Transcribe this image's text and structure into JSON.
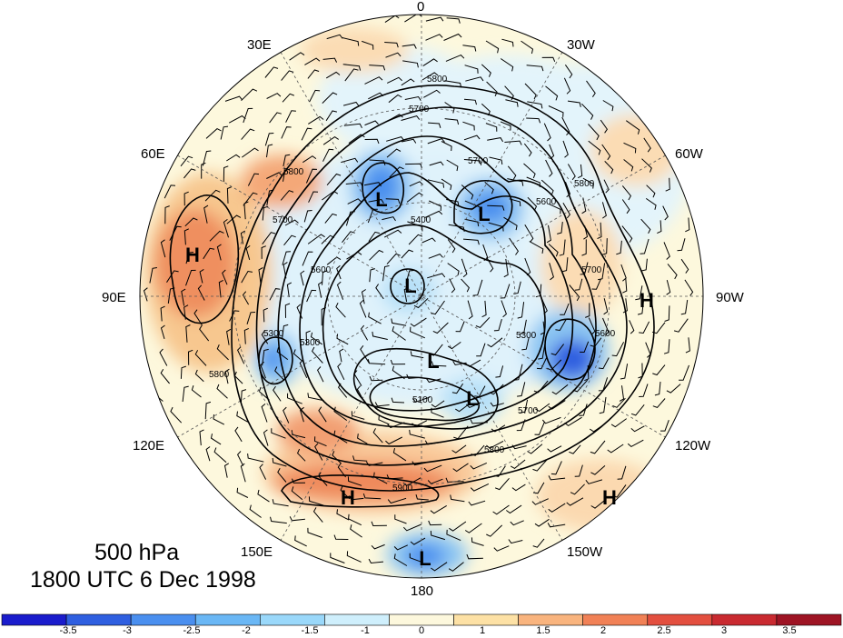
{
  "title": {
    "level": "500 hPa",
    "time": "1800 UTC 6 Dec 1998"
  },
  "longitude_labels": {
    "lon_0": "0",
    "lon_30w": "30W",
    "lon_60w": "60W",
    "lon_90w": "90W",
    "lon_120w": "120W",
    "lon_150w": "150W",
    "lon_180": "180",
    "lon_150e": "150E",
    "lon_120e": "120E",
    "lon_90e": "90E",
    "lon_60e": "60E",
    "lon_30e": "30E"
  },
  "pressure_centers": [
    "H",
    "L",
    "L",
    "L",
    "L",
    "L",
    "L",
    "H",
    "H",
    "H"
  ],
  "contour_labels": [
    "5800",
    "5700",
    "5700",
    "5600",
    "5800",
    "5700",
    "5600",
    "5800",
    "5400",
    "5300",
    "5300",
    "5100",
    "5800",
    "5700",
    "5900",
    "5800",
    "5300",
    "5700",
    "5600"
  ],
  "colorbar": {
    "colors": [
      "#1a1ccc",
      "#2f5fe0",
      "#4a8fef",
      "#6ab7f5",
      "#9ad8fa",
      "#cfeffc",
      "#fdf8dd",
      "#fde1a5",
      "#f9b47e",
      "#f18156",
      "#e34f3f",
      "#c92a30",
      "#9e1424"
    ],
    "ticks": [
      "-3.5",
      "-3",
      "-2.5",
      "-2",
      "-1.5",
      "-1",
      "0",
      "1",
      "1.5",
      "2",
      "2.5",
      "3",
      "3.5"
    ]
  }
}
